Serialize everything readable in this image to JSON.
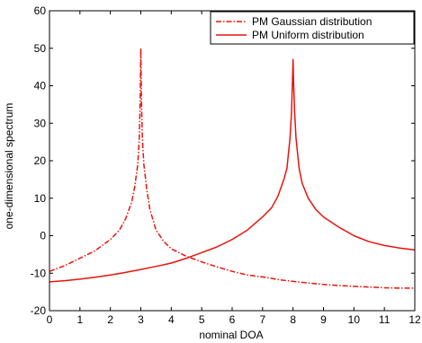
{
  "chart_data": {
    "type": "line",
    "xlabel": "nominal DOA",
    "ylabel": "one-dimensional spectrum",
    "xlim": [
      0,
      12
    ],
    "ylim": [
      -20,
      60
    ],
    "xticks": [
      0,
      1,
      2,
      3,
      4,
      5,
      6,
      7,
      8,
      9,
      10,
      11,
      12
    ],
    "yticks": [
      -20,
      -10,
      0,
      10,
      20,
      30,
      40,
      50,
      60
    ],
    "grid": false,
    "legend_position": "top-right",
    "series": [
      {
        "name": "PM Gaussian distribution",
        "color": "#e8140c",
        "style": "dash-dot",
        "x": [
          0,
          0.5,
          1,
          1.5,
          2,
          2.3,
          2.5,
          2.7,
          2.8,
          2.9,
          2.95,
          2.98,
          3.0,
          3.02,
          3.05,
          3.1,
          3.2,
          3.3,
          3.5,
          3.75,
          4,
          4.5,
          5,
          5.5,
          6,
          6.5,
          7,
          7.5,
          8,
          8.5,
          9,
          9.5,
          10,
          10.5,
          11,
          11.5,
          12
        ],
        "y": [
          -9.5,
          -8,
          -6,
          -4,
          -1,
          1.5,
          4.5,
          9,
          13,
          19,
          26,
          36,
          50,
          36,
          26,
          19,
          12,
          7,
          1.5,
          -1.5,
          -3.5,
          -5.5,
          -7,
          -8.3,
          -9.5,
          -10.5,
          -11,
          -11.7,
          -12.2,
          -12.6,
          -13,
          -13.3,
          -13.5,
          -13.7,
          -13.9,
          -14,
          -14
        ]
      },
      {
        "name": "PM Uniform distribution",
        "color": "#e8140c",
        "style": "solid",
        "x": [
          0,
          0.5,
          1,
          1.5,
          2,
          2.5,
          3,
          3.5,
          4,
          4.5,
          5,
          5.5,
          6,
          6.5,
          7,
          7.3,
          7.5,
          7.7,
          7.8,
          7.9,
          7.95,
          7.98,
          8.0,
          8.02,
          8.05,
          8.1,
          8.2,
          8.3,
          8.5,
          8.75,
          9,
          9.5,
          10,
          10.5,
          11,
          11.5,
          12
        ],
        "y": [
          -12.3,
          -12,
          -11.6,
          -11.1,
          -10.5,
          -9.8,
          -9,
          -8.2,
          -7.3,
          -6,
          -4.5,
          -3,
          -1,
          1.5,
          5,
          7.5,
          10.5,
          15,
          18,
          26,
          33,
          41,
          47,
          41,
          33,
          26,
          18,
          14,
          10,
          7,
          5,
          2.3,
          0,
          -1.6,
          -2.6,
          -3.3,
          -3.8
        ]
      }
    ]
  }
}
